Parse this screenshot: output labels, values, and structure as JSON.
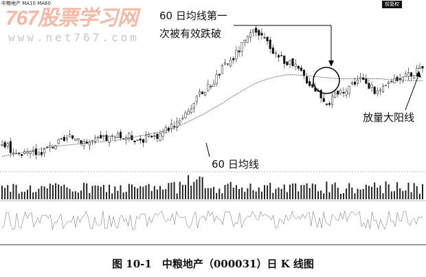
{
  "header": {
    "stock": "中粮地产",
    "ma_text": "MA10 MA60"
  },
  "tag": "前复权",
  "watermark": {
    "brand": "767股票学习网",
    "url": "www.net767.com"
  },
  "annotations": {
    "break": "60 日均线第一次被有效跌破",
    "break_line1": "60 日均线第一",
    "break_line2": "次被有效跌破",
    "volume_yang": "放量大阳线",
    "ma60": "60 日均线"
  },
  "caption": "图 10-1　中粮地产（000031）日 K 线图",
  "chart_data": {
    "type": "candlestick",
    "title": "中粮地产（000031）日 K 线图",
    "series": [
      {
        "name": "K",
        "close": [
          9.5,
          8.8,
          8.3,
          8.5,
          8.8,
          9.4,
          9.8,
          10.2,
          9.6,
          9.8,
          10.0,
          10.1,
          10.2,
          9.9,
          10.0,
          10.4,
          11.2,
          12.0,
          13.2,
          14.5,
          15.5,
          17.0,
          18.0,
          19.5,
          20.5,
          19.8,
          18.5,
          17.6,
          17.0,
          15.8,
          14.7,
          13.5,
          14.5,
          15.2,
          16.0,
          15.0,
          14.5,
          15.8,
          16.2,
          16.5,
          16.8
        ]
      },
      {
        "name": "MA60",
        "values": [
          8.2,
          8.4,
          8.6,
          8.8,
          9.0,
          9.2,
          9.3,
          9.4,
          9.5,
          9.6,
          9.7,
          9.8,
          10.0,
          10.2,
          10.4,
          10.6,
          10.9,
          11.3,
          11.8,
          12.3,
          12.9,
          13.5,
          14.2,
          14.8,
          15.4,
          15.8,
          16.1,
          16.3,
          16.3,
          16.2,
          16.1,
          16.0,
          15.9,
          15.9,
          15.9,
          15.9,
          15.9,
          15.8,
          15.8,
          15.7,
          15.7
        ]
      }
    ],
    "panels": [
      "price",
      "volume",
      "indicator"
    ],
    "grid": false
  }
}
